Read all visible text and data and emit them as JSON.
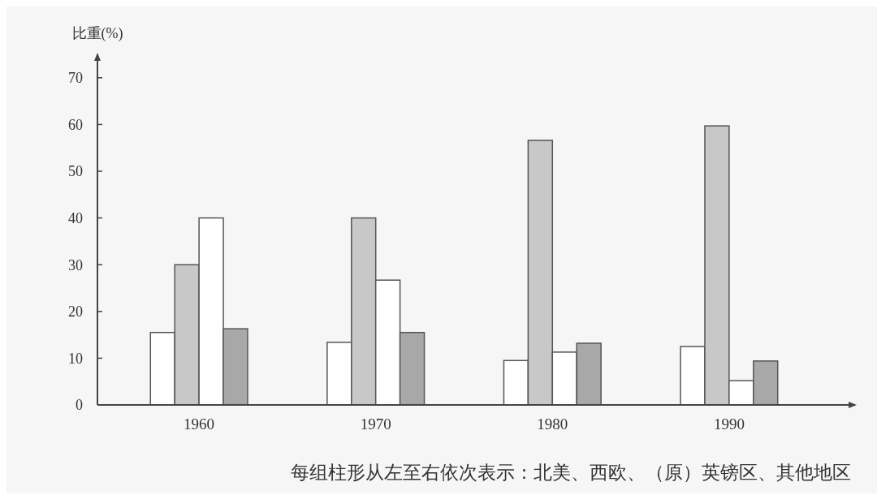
{
  "chart_data": {
    "type": "bar",
    "ylabel": "比重(%)",
    "categories": [
      "1960",
      "1970",
      "1980",
      "1990"
    ],
    "series": [
      {
        "color": "#ffffff",
        "values": [
          15.5,
          13.4,
          9.5,
          12.5
        ]
      },
      {
        "color": "#c8c8c8",
        "values": [
          30,
          40,
          56.6,
          59.7
        ]
      },
      {
        "color": "#ffffff",
        "values": [
          40,
          26.7,
          11.3,
          5.2
        ]
      },
      {
        "color": "#a8a8a8",
        "values": [
          16.3,
          15.5,
          13.2,
          9.4
        ]
      }
    ],
    "ylim": [
      0,
      75
    ],
    "yticks": [
      0,
      10,
      20,
      30,
      40,
      50,
      60,
      70
    ],
    "grid": false,
    "annotations": [
      "每组柱形从左至右依次表示：北美、西欧、（原）英镑区、其他地区"
    ]
  }
}
